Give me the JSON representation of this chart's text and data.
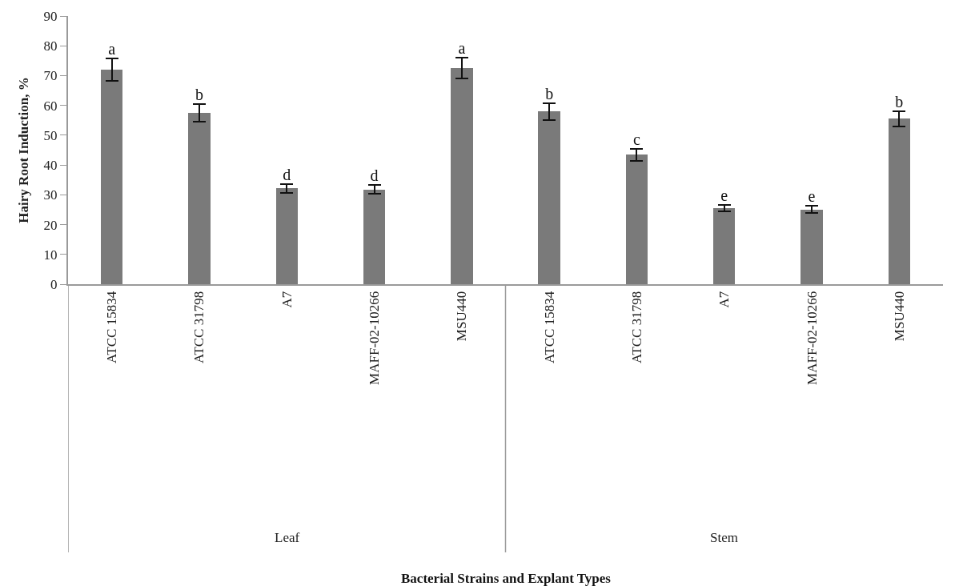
{
  "chart_data": {
    "type": "bar",
    "ylabel": "Hairy Root Induction, %",
    "categories": [
      "ATCC 15834",
      "ATCC 31798",
      "A7",
      "MAFF-02-10266",
      "MSU440",
      "ATCC 15834",
      "ATCC 31798",
      "A7",
      "MAFF-02-10266",
      "MSU440"
    ],
    "values": [
      72,
      57.5,
      32.2,
      31.8,
      72.5,
      58,
      43.5,
      25.5,
      25,
      55.5
    ],
    "errors": [
      3.8,
      3,
      1.5,
      1.5,
      3.5,
      2.8,
      2,
      1,
      1.2,
      2.5
    ],
    "value_labels": [
      "a",
      "b",
      "d",
      "d",
      "a",
      "b",
      "c",
      "e",
      "e",
      "b"
    ],
    "color": "#7a7a7a",
    "annotations": [
      "Leaf",
      "Stem",
      "Bacterial Strains and Explant Types"
    ],
    "ylim": [
      0,
      90
    ],
    "yticks": [
      0,
      10,
      20,
      30,
      40,
      50,
      60,
      70,
      80,
      90
    ]
  }
}
